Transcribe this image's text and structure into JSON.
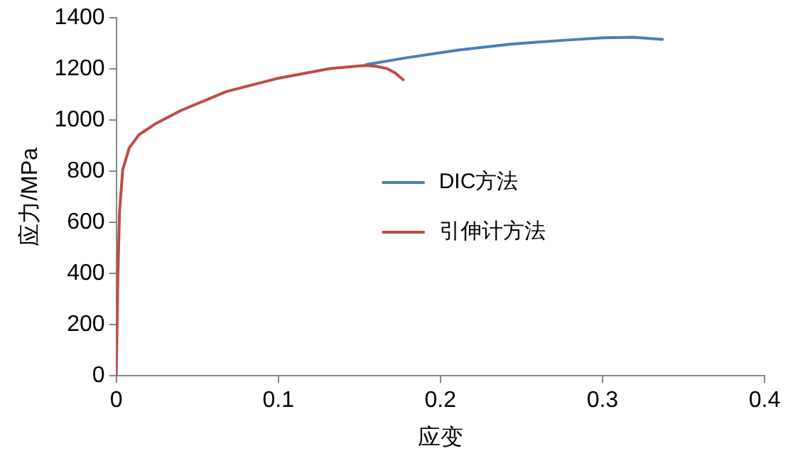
{
  "chart_data": {
    "type": "line",
    "xlabel": "应变",
    "ylabel": "应力/MPa",
    "xlim": [
      0,
      0.4
    ],
    "xticks": [
      0,
      0.1,
      0.2,
      0.3,
      0.4
    ],
    "ylim": [
      0,
      1400
    ],
    "yticks": [
      0,
      200,
      400,
      600,
      800,
      1000,
      1200,
      1400
    ],
    "grid": false,
    "legend": "right",
    "marker": "none",
    "line_style": "solid",
    "series": [
      {
        "name": "DIC方法",
        "color": "#4a7ebb",
        "x": [
          0.154,
          0.179,
          0.211,
          0.243,
          0.275,
          0.3,
          0.319,
          0.337
        ],
        "values": [
          1217,
          1244,
          1274,
          1297,
          1312,
          1322,
          1324,
          1316
        ]
      },
      {
        "name": "引伸计方法",
        "color": "#be4b48",
        "x": [
          0,
          0.001,
          0.002,
          0.004,
          0.008,
          0.014,
          0.024,
          0.04,
          0.068,
          0.1,
          0.132,
          0.154,
          0.16,
          0.167,
          0.172,
          0.177
        ],
        "values": [
          0,
          385,
          638,
          806,
          891,
          943,
          985,
          1038,
          1112,
          1164,
          1202,
          1214,
          1211,
          1202,
          1185,
          1158
        ]
      }
    ]
  }
}
